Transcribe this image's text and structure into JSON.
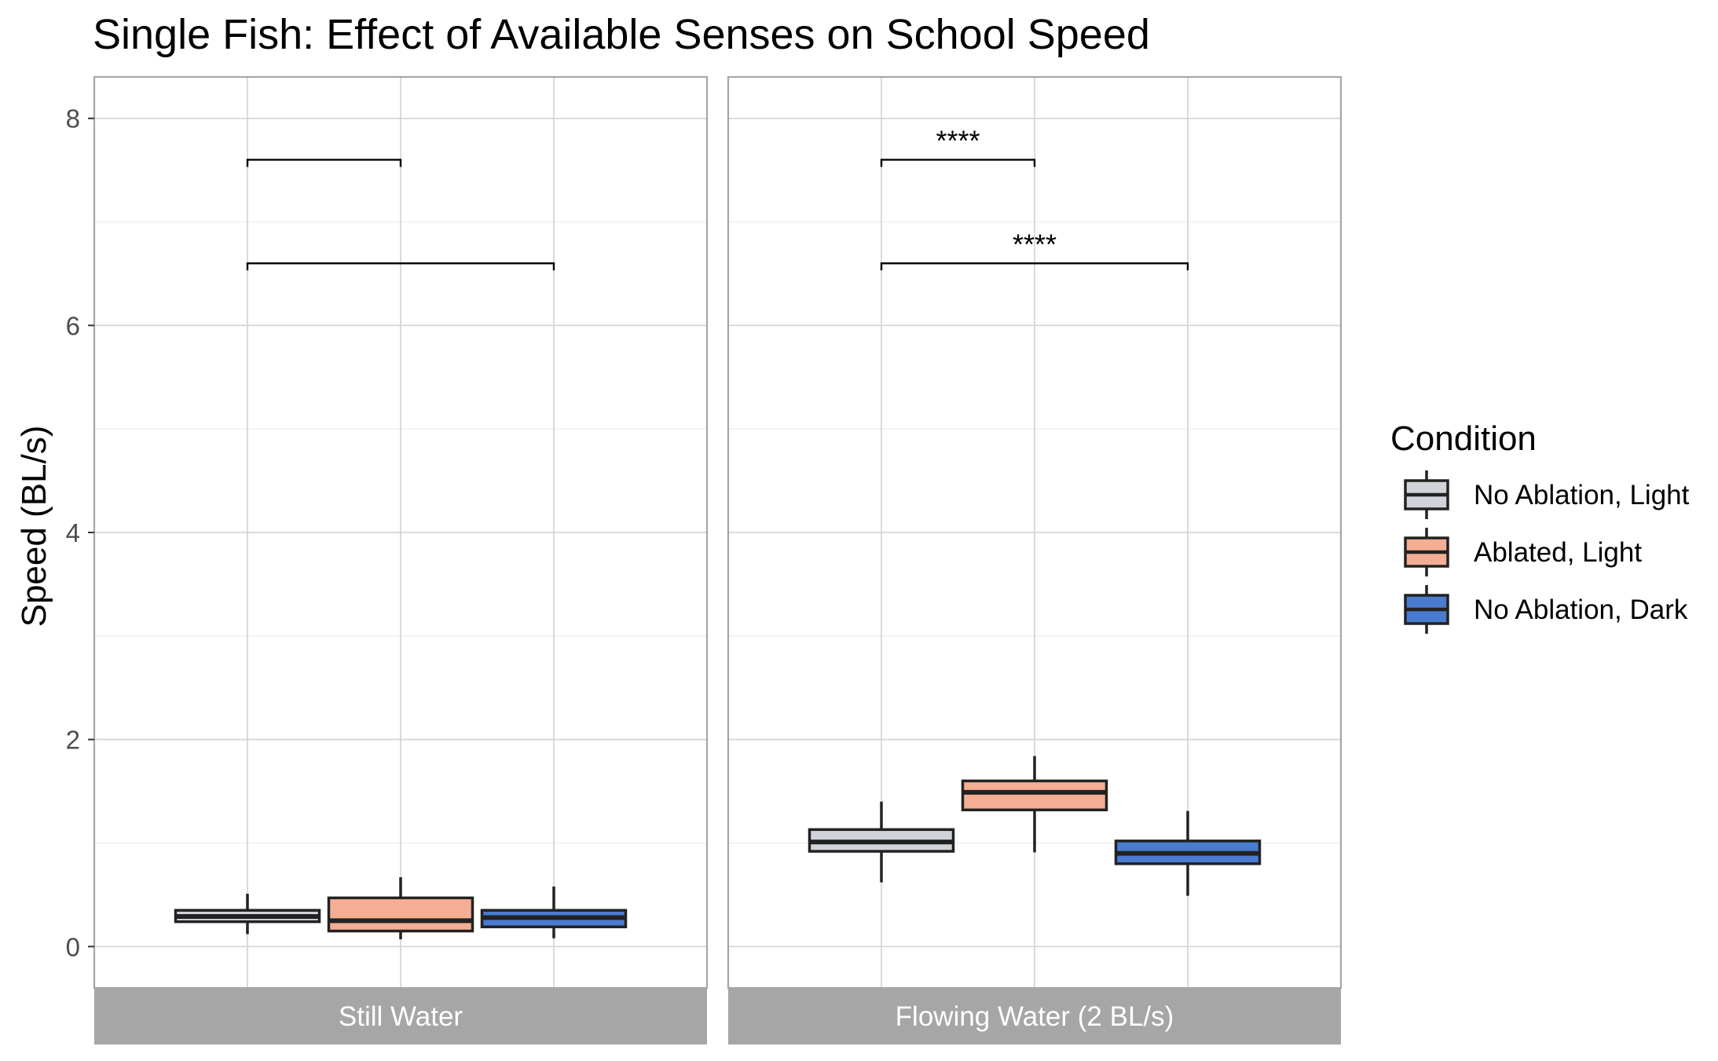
{
  "chart_data": {
    "type": "boxplot",
    "title": "Single Fish: Effect of Available Senses on School Speed",
    "xlabel": "",
    "ylabel": "Speed (BL/s)",
    "ylim": [
      -0.4,
      8.4
    ],
    "yticks": [
      0,
      2,
      4,
      6,
      8
    ],
    "legend": {
      "title": "Condition",
      "position": "right",
      "entries": [
        {
          "label": "No Ablation, Light",
          "color": "#d0d4d9"
        },
        {
          "label": "Ablated, Light",
          "color": "#f4ae93"
        },
        {
          "label": "No Ablation, Dark",
          "color": "#4a7bd0"
        }
      ]
    },
    "panels": [
      {
        "label": "Still Water",
        "boxes": [
          {
            "condition": "No Ablation, Light",
            "whisker_low": 0.12,
            "q1": 0.24,
            "median": 0.29,
            "q3": 0.35,
            "whisker_high": 0.51
          },
          {
            "condition": "Ablated, Light",
            "whisker_low": 0.07,
            "q1": 0.15,
            "median": 0.25,
            "q3": 0.47,
            "whisker_high": 0.67
          },
          {
            "condition": "No Ablation, Dark",
            "whisker_low": 0.08,
            "q1": 0.19,
            "median": 0.28,
            "q3": 0.35,
            "whisker_high": 0.58
          }
        ],
        "comparisons": [
          {
            "from": 0,
            "to": 1,
            "y": 7.6,
            "label": ""
          },
          {
            "from": 0,
            "to": 2,
            "y": 6.6,
            "label": ""
          }
        ]
      },
      {
        "label": "Flowing Water (2 BL/s)",
        "boxes": [
          {
            "condition": "No Ablation, Light",
            "whisker_low": 0.62,
            "q1": 0.92,
            "median": 1.01,
            "q3": 1.13,
            "whisker_high": 1.4
          },
          {
            "condition": "Ablated, Light",
            "whisker_low": 0.91,
            "q1": 1.32,
            "median": 1.49,
            "q3": 1.6,
            "whisker_high": 1.84
          },
          {
            "condition": "No Ablation, Dark",
            "whisker_low": 0.49,
            "q1": 0.8,
            "median": 0.9,
            "q3": 1.02,
            "whisker_high": 1.31
          }
        ],
        "comparisons": [
          {
            "from": 0,
            "to": 1,
            "y": 7.6,
            "label": "****"
          },
          {
            "from": 0,
            "to": 2,
            "y": 6.6,
            "label": "****"
          }
        ]
      }
    ]
  }
}
